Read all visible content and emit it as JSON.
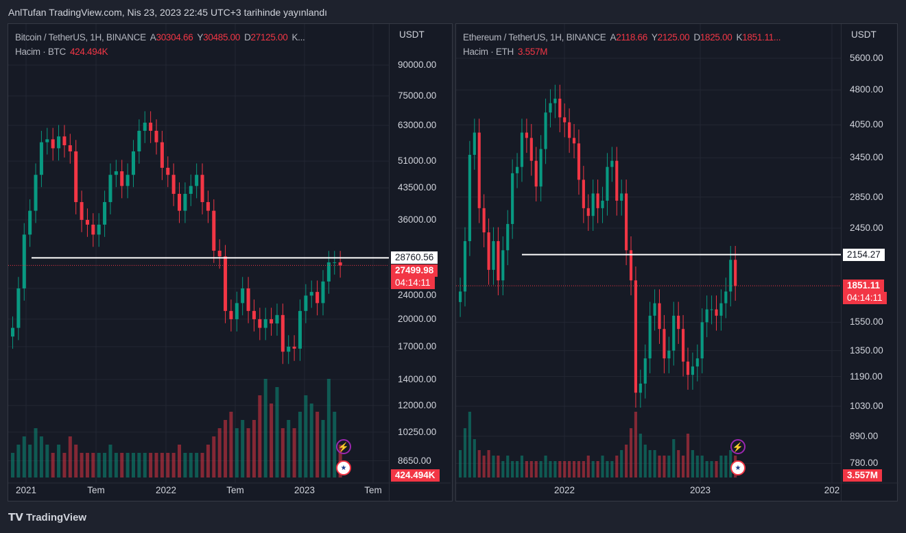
{
  "header": {
    "published": "AnlTufan TradingView.com, Nis 23, 2023 22:45 UTC+3 tarihinde yayınlandı"
  },
  "footer": {
    "brand": "TradingView"
  },
  "colors": {
    "up": "#089981",
    "down": "#f23645",
    "bg": "#161a25"
  },
  "charts": [
    {
      "symbol": "Bitcoin / TetherUS, 1H, BINANCE",
      "o_label": "A",
      "o": "30304.66",
      "h_label": "Y",
      "h": "30485.00",
      "l_label": "D",
      "l": "27125.00",
      "c_label": "K...",
      "volume_label": "Hacim · BTC",
      "volume": "424.494K",
      "currency": "USDT",
      "price_ticks": [
        "90000.00",
        "75000.00",
        "63000.00",
        "51000.00",
        "43500.00",
        "36000.00",
        "24000.00",
        "20000.00",
        "17000.00",
        "14000.00",
        "12000.00",
        "10250.00",
        "8650.00"
      ],
      "time_labels": [
        "2021",
        "Tem",
        "2022",
        "Tem",
        "2023",
        "Tem"
      ],
      "hline": "28760.56",
      "last_price": "27499.98",
      "countdown": "04:14:11",
      "volume_tag": "424.494K",
      "closes": [
        19000,
        24000,
        33000,
        38000,
        47000,
        57000,
        58000,
        55000,
        59000,
        56000,
        54000,
        40000,
        36000,
        35000,
        33000,
        35000,
        40000,
        47000,
        48000,
        44000,
        47000,
        54000,
        61000,
        64000,
        61000,
        57000,
        49000,
        47000,
        42000,
        38000,
        42000,
        44000,
        47000,
        40000,
        38000,
        30000,
        29000,
        21000,
        20000,
        22000,
        24000,
        21000,
        20000,
        19000,
        20000,
        19500,
        20500,
        16500,
        17000,
        16800,
        21000,
        23000,
        23500,
        22000,
        25000,
        28000,
        28000,
        27500
      ],
      "volumes": [
        3,
        4,
        5,
        4,
        6,
        5,
        4,
        3,
        4,
        3,
        5,
        4,
        3,
        3,
        3,
        3,
        3,
        4,
        3,
        3,
        3,
        3,
        3,
        3,
        3,
        3,
        3,
        3,
        3,
        4,
        3,
        3,
        3,
        3,
        4,
        5,
        6,
        7,
        8,
        6,
        7,
        6,
        7,
        10,
        12,
        9,
        11,
        6,
        7,
        6,
        8,
        10,
        9,
        8,
        7,
        12,
        8,
        4
      ]
    },
    {
      "symbol": "Ethereum / TetherUS, 1H, BINANCE",
      "o_label": "A",
      "o": "2118.66",
      "h_label": "Y",
      "h": "2125.00",
      "l_label": "D",
      "l": "1825.00",
      "c_label": "K",
      "c": "1851.11...",
      "volume_label": "Hacim · ETH",
      "volume": "3.557M",
      "currency": "USDT",
      "price_ticks": [
        "5600.00",
        "4800.00",
        "4050.00",
        "3450.00",
        "2850.00",
        "2450.00",
        "1550.00",
        "1350.00",
        "1190.00",
        "1030.00",
        "890.00",
        "780.00"
      ],
      "time_labels": [
        "2022",
        "2023",
        "202"
      ],
      "hline": "2154.27",
      "last_price": "1851.11",
      "countdown": "04:14:11",
      "volume_tag": "3.557M",
      "closes": [
        1800,
        2300,
        3500,
        3900,
        2700,
        2400,
        2000,
        2300,
        1900,
        2200,
        2500,
        3200,
        3300,
        3900,
        3800,
        3400,
        3000,
        3600,
        4300,
        4500,
        4600,
        4200,
        4100,
        3800,
        3700,
        3100,
        2700,
        2600,
        2900,
        2700,
        2800,
        3300,
        3400,
        2800,
        2900,
        2200,
        1900,
        1100,
        1150,
        1300,
        1600,
        1700,
        1500,
        1300,
        1350,
        1600,
        1500,
        1280,
        1200,
        1250,
        1300,
        1550,
        1650,
        1650,
        1600,
        1700,
        1800,
        2100,
        1850
      ],
      "volumes": [
        5,
        9,
        12,
        7,
        5,
        4,
        5,
        4,
        4,
        3,
        4,
        3,
        3,
        4,
        3,
        3,
        3,
        3,
        4,
        3,
        3,
        3,
        3,
        3,
        3,
        3,
        3,
        4,
        3,
        3,
        4,
        3,
        3,
        4,
        5,
        6,
        9,
        12,
        8,
        6,
        5,
        5,
        4,
        4,
        4,
        7,
        5,
        4,
        8,
        5,
        4,
        4,
        3,
        3,
        3,
        4,
        4,
        5,
        4
      ]
    }
  ]
}
